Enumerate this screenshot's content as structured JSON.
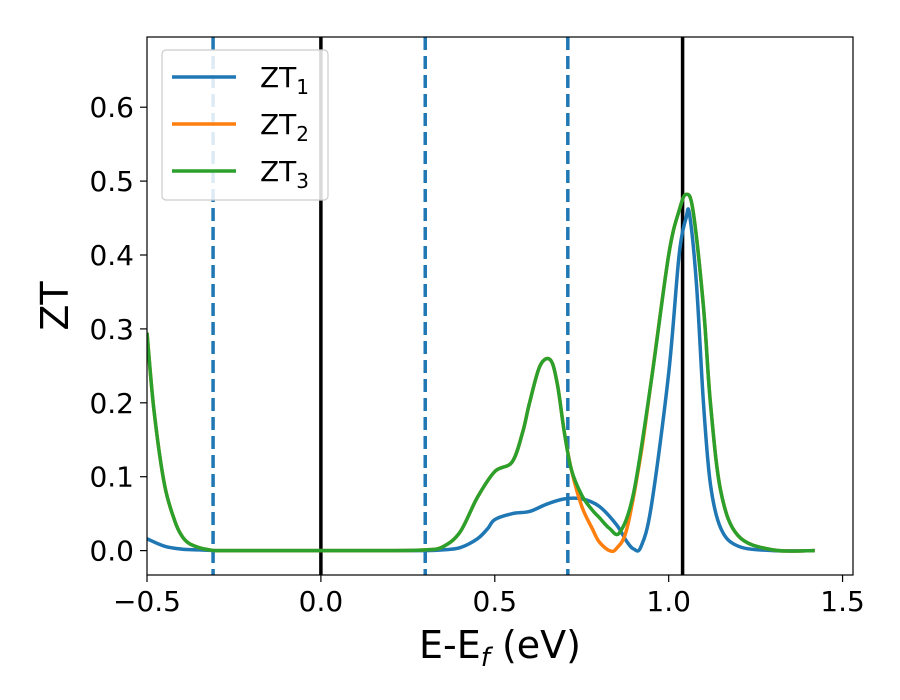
{
  "chart_data": {
    "type": "line",
    "xlabel": "E-E",
    "xlabel_sub": "f",
    "xlabel_unit": " (eV)",
    "ylabel": "ZT",
    "xlim": [
      -0.5,
      1.53
    ],
    "ylim": [
      -0.033,
      0.695
    ],
    "xticks": [
      -0.5,
      0.0,
      0.5,
      1.0,
      1.5
    ],
    "xtick_labels": [
      "−0.5",
      "0.0",
      "0.5",
      "1.0",
      "1.5"
    ],
    "yticks": [
      0.0,
      0.1,
      0.2,
      0.3,
      0.4,
      0.5,
      0.6
    ],
    "ytick_labels": [
      "0.0",
      "0.1",
      "0.2",
      "0.3",
      "0.4",
      "0.5",
      "0.6"
    ],
    "legend_position": "top-left",
    "grid": false,
    "vlines_solid": [
      0.0,
      1.04
    ],
    "vlines_dashed": [
      -0.31,
      0.3,
      0.71
    ],
    "series": [
      {
        "name": "ZT",
        "name_sub": "1",
        "color": "#1f77b4",
        "x": [
          -0.5,
          -0.45,
          -0.4,
          -0.35,
          -0.3,
          -0.2,
          0.0,
          0.2,
          0.3,
          0.35,
          0.4,
          0.45,
          0.48,
          0.5,
          0.55,
          0.6,
          0.65,
          0.7,
          0.75,
          0.8,
          0.85,
          0.88,
          0.9,
          0.92,
          0.95,
          1.0,
          1.03,
          1.05,
          1.06,
          1.08,
          1.1,
          1.12,
          1.15,
          1.2,
          1.3,
          1.42
        ],
        "y": [
          0.016,
          0.006,
          0.002,
          0.001,
          0.0,
          0.0,
          0.0,
          0.0,
          0.0,
          0.001,
          0.004,
          0.016,
          0.03,
          0.042,
          0.05,
          0.053,
          0.063,
          0.07,
          0.07,
          0.06,
          0.035,
          0.012,
          0.002,
          0.005,
          0.06,
          0.24,
          0.4,
          0.45,
          0.455,
          0.36,
          0.2,
          0.09,
          0.03,
          0.006,
          0.0,
          0.0
        ]
      },
      {
        "name": "ZT",
        "name_sub": "2",
        "color": "#ff7f0e",
        "x": [
          -0.5,
          -0.48,
          -0.45,
          -0.42,
          -0.4,
          -0.38,
          -0.35,
          -0.32,
          -0.3,
          -0.2,
          0.0,
          0.2,
          0.3,
          0.35,
          0.4,
          0.45,
          0.5,
          0.55,
          0.58,
          0.6,
          0.63,
          0.66,
          0.68,
          0.7,
          0.72,
          0.75,
          0.78,
          0.8,
          0.83,
          0.85,
          0.88,
          0.92,
          0.95,
          1.0,
          1.03,
          1.05,
          1.07,
          1.1,
          1.12,
          1.15,
          1.2,
          1.3,
          1.42
        ],
        "y": [
          0.295,
          0.19,
          0.09,
          0.04,
          0.02,
          0.01,
          0.004,
          0.001,
          0.0,
          0.0,
          0.0,
          0.0,
          0.001,
          0.005,
          0.025,
          0.072,
          0.107,
          0.12,
          0.16,
          0.2,
          0.25,
          0.258,
          0.225,
          0.16,
          0.11,
          0.06,
          0.03,
          0.012,
          0.0,
          0.003,
          0.03,
          0.13,
          0.23,
          0.4,
          0.46,
          0.482,
          0.46,
          0.33,
          0.2,
          0.08,
          0.02,
          0.001,
          0.0
        ]
      },
      {
        "name": "ZT",
        "name_sub": "3",
        "color": "#2ca02c",
        "x": [
          -0.5,
          -0.48,
          -0.45,
          -0.42,
          -0.4,
          -0.38,
          -0.35,
          -0.32,
          -0.3,
          -0.2,
          0.0,
          0.2,
          0.3,
          0.35,
          0.4,
          0.45,
          0.5,
          0.55,
          0.58,
          0.6,
          0.63,
          0.66,
          0.68,
          0.7,
          0.72,
          0.75,
          0.78,
          0.8,
          0.83,
          0.86,
          0.9,
          0.95,
          1.0,
          1.03,
          1.05,
          1.07,
          1.1,
          1.12,
          1.15,
          1.2,
          1.3,
          1.42
        ],
        "y": [
          0.295,
          0.19,
          0.09,
          0.04,
          0.02,
          0.01,
          0.004,
          0.001,
          0.0,
          0.0,
          0.0,
          0.0,
          0.001,
          0.005,
          0.025,
          0.072,
          0.107,
          0.12,
          0.16,
          0.2,
          0.25,
          0.258,
          0.225,
          0.16,
          0.11,
          0.075,
          0.055,
          0.045,
          0.03,
          0.025,
          0.08,
          0.23,
          0.4,
          0.46,
          0.482,
          0.46,
          0.33,
          0.2,
          0.08,
          0.02,
          0.001,
          0.0
        ]
      }
    ]
  }
}
